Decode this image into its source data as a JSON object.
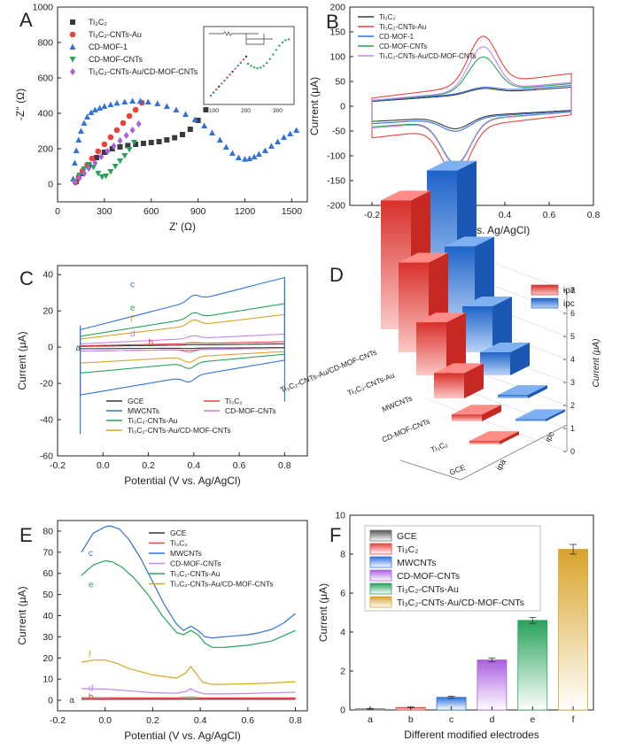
{
  "figure": {
    "panel_letters": [
      "A",
      "B",
      "C",
      "D",
      "E",
      "F"
    ]
  },
  "chart_data": [
    {
      "panel": "A",
      "type": "scatter",
      "title": "",
      "xlabel": "Z' (Ω)",
      "ylabel": "-Z'' (Ω)",
      "xlim": [
        0,
        1600
      ],
      "ylim": [
        -100,
        1000
      ],
      "xticks": [
        0,
        300,
        600,
        900,
        1200,
        1500
      ],
      "yticks": [
        0,
        200,
        400,
        600,
        800,
        1000
      ],
      "legend_position": "top-left",
      "series": [
        {
          "name": "Ti₃C₂",
          "color": "#3a3a3a",
          "marker": "square",
          "x": [
            120,
            160,
            200,
            250,
            300,
            350,
            400,
            450,
            500,
            550,
            600,
            650,
            700,
            750,
            800,
            850,
            900,
            950,
            1000
          ],
          "y": [
            15,
            60,
            110,
            150,
            180,
            200,
            210,
            218,
            225,
            230,
            235,
            240,
            250,
            262,
            280,
            310,
            360,
            420,
            465
          ]
        },
        {
          "name": "Ti₃C₂-CNTs-Au",
          "color": "#e8433c",
          "marker": "circle",
          "x": [
            115,
            135,
            160,
            190,
            220,
            260,
            300,
            340,
            380,
            420,
            460,
            500,
            540
          ],
          "y": [
            10,
            40,
            75,
            110,
            145,
            185,
            225,
            265,
            305,
            345,
            385,
            420,
            460
          ]
        },
        {
          "name": "CD-MOF-1",
          "color": "#2f72dc",
          "marker": "triangle",
          "x": [
            100,
            110,
            120,
            135,
            150,
            170,
            190,
            215,
            240,
            270,
            300,
            340,
            380,
            430,
            480,
            530,
            580,
            640,
            700,
            760,
            820,
            880,
            940,
            990,
            1040,
            1080,
            1120,
            1160,
            1200,
            1230,
            1260,
            1290,
            1330,
            1370,
            1410,
            1450,
            1490,
            1530
          ],
          "y": [
            30,
            120,
            190,
            250,
            300,
            345,
            380,
            405,
            420,
            430,
            440,
            450,
            458,
            465,
            470,
            470,
            465,
            455,
            440,
            420,
            395,
            365,
            330,
            290,
            250,
            210,
            175,
            150,
            142,
            145,
            155,
            170,
            190,
            215,
            240,
            265,
            285,
            305
          ]
        },
        {
          "name": "CD-MOF-CNTs",
          "color": "#27a35b",
          "marker": "triangle-down",
          "x": [
            110,
            140,
            170,
            200,
            230,
            260,
            285,
            310,
            340,
            370,
            400,
            430,
            460,
            490
          ],
          "y": [
            15,
            50,
            85,
            110,
            95,
            60,
            40,
            45,
            70,
            100,
            130,
            160,
            195,
            235
          ]
        },
        {
          "name": "Ti₃C₂-CNTs-Au/CD-MOF-CNTs",
          "color": "#a95fde",
          "marker": "diamond",
          "x": [
            110,
            140,
            170,
            200,
            240,
            280,
            320,
            360,
            400,
            440,
            480,
            520
          ],
          "y": [
            10,
            35,
            60,
            90,
            120,
            155,
            185,
            215,
            245,
            275,
            305,
            340
          ]
        }
      ]
    },
    {
      "panel": "B",
      "type": "line",
      "title": "",
      "xlabel": "Potential (V vs. Ag/AgCl)",
      "ylabel": "Current (μA)",
      "xlim": [
        -0.3,
        0.8
      ],
      "ylim": [
        -200,
        200
      ],
      "xticks": [
        -0.2,
        0.0,
        0.2,
        0.4,
        0.6,
        0.8
      ],
      "yticks": [
        -200,
        -150,
        -100,
        -50,
        0,
        50,
        100,
        150,
        200
      ],
      "legend_position": "top-left",
      "series": [
        {
          "name": "Ti₃C₂",
          "color": "#3a3a3a",
          "ipa": 42,
          "ipc": -52,
          "epa": 0.3,
          "epc": 0.18,
          "cap_hi": 32,
          "cap_lo": -28
        },
        {
          "name": "Ti₃C₂-CNTs-Au",
          "color": "#e8433c",
          "ipa": 152,
          "ipc": -153,
          "epa": 0.3,
          "epc": 0.18,
          "cap_hi": 55,
          "cap_lo": -58
        },
        {
          "name": "CD-MOF-1",
          "color": "#2f72dc",
          "ipa": 45,
          "ipc": -58,
          "epa": 0.3,
          "epc": 0.18,
          "cap_hi": 35,
          "cap_lo": -32
        },
        {
          "name": "CD-MOF-CNTs",
          "color": "#27a35b",
          "ipa": 107,
          "ipc": -125,
          "epa": 0.3,
          "epc": 0.18,
          "cap_hi": 38,
          "cap_lo": -38
        },
        {
          "name": "Ti₃C₂-CNTs-Au/CD-MOF-CNTs",
          "color": "#c884e8",
          "ipa": 128,
          "ipc": -128,
          "epa": 0.3,
          "epc": 0.18,
          "cap_hi": 40,
          "cap_lo": -40
        }
      ]
    },
    {
      "panel": "C",
      "type": "line",
      "title": "",
      "xlabel": "Potential (V vs. Ag/AgCl)",
      "ylabel": "Current (μA)",
      "xlim": [
        -0.2,
        0.9
      ],
      "ylim": [
        -60,
        45
      ],
      "xticks": [
        -0.2,
        0.0,
        0.2,
        0.4,
        0.6,
        0.8
      ],
      "yticks": [
        -60,
        -40,
        -20,
        0,
        20,
        40
      ],
      "legend_position": "bottom",
      "curve_letters": [
        "a",
        "b",
        "c",
        "d",
        "e",
        "f"
      ],
      "series": [
        {
          "letter": "a",
          "name": "GCE",
          "color": "#3a3a3a",
          "top": 1.5,
          "bot": -0.8,
          "peak": 0.2
        },
        {
          "letter": "b",
          "name": "Ti₃C₂",
          "color": "#e8433c",
          "top": 2.5,
          "bot": -2.0,
          "peak": 0.5
        },
        {
          "letter": "c",
          "name": "MWCNTs",
          "color": "#2f72dc",
          "top": 32,
          "bot": -24,
          "peak": 3
        },
        {
          "letter": "d",
          "name": "CD-MOF-CNTs",
          "color": "#c884e8",
          "top": 6,
          "bot": -2,
          "peak": 1.5
        },
        {
          "letter": "e",
          "name": "Ti₃C₂-CNTs-Au",
          "color": "#27a35b",
          "top": 20,
          "bot": -13,
          "peak": 3
        },
        {
          "letter": "f",
          "name": "Ti₃C₂-CNTs-Au/CD-MOF-CNTs",
          "color": "#d8a32a",
          "top": 15,
          "bot": -8,
          "peak": 3
        }
      ]
    },
    {
      "panel": "D",
      "type": "bar",
      "title": "",
      "zlabel": "Current (μA)",
      "zlim": [
        0,
        7
      ],
      "zticks": [
        0,
        1,
        2,
        3,
        4,
        5,
        6,
        7
      ],
      "categories": [
        "GCE",
        "Ti₃C₂",
        "CD-MOF-CNTs",
        "MWCNTs",
        "Ti₃C₂-CNTs-Au",
        "Ti₃C₂-CNTs-Au/CD-MOF-CNTs"
      ],
      "series_axis_labels": [
        "ipa",
        "ipc"
      ],
      "legend_position": "top-right",
      "series": [
        {
          "name": "ipa",
          "color": "#e8433c",
          "values": [
            0.15,
            0.3,
            1.1,
            2.3,
            3.9,
            5.6
          ]
        },
        {
          "name": "ipc",
          "color": "#2f72dc",
          "values": [
            0.1,
            0.15,
            1.0,
            2.0,
            3.6,
            5.9
          ]
        }
      ]
    },
    {
      "panel": "E",
      "type": "line",
      "title": "",
      "xlabel": "Potential (V vs. Ag/AgCl)",
      "ylabel": "Current (μA)",
      "xlim": [
        -0.2,
        0.85
      ],
      "ylim": [
        -5,
        85
      ],
      "xticks": [
        -0.2,
        0.0,
        0.2,
        0.4,
        0.6,
        0.8
      ],
      "yticks": [
        0,
        10,
        20,
        30,
        40,
        50,
        60,
        70,
        80
      ],
      "legend_position": "top-right",
      "curve_letters": [
        "a",
        "b",
        "c",
        "d",
        "e",
        "f"
      ],
      "series": [
        {
          "letter": "a",
          "name": "GCE",
          "color": "#3a3a3a",
          "x": [
            -0.1,
            0.0,
            0.1,
            0.2,
            0.3,
            0.36,
            0.4,
            0.5,
            0.6,
            0.7,
            0.8
          ],
          "y": [
            0.5,
            0.5,
            0.5,
            0.5,
            0.5,
            0.6,
            0.5,
            0.5,
            0.5,
            0.5,
            0.5
          ]
        },
        {
          "letter": "b",
          "name": "Ti₃C₂",
          "color": "#e8433c",
          "x": [
            -0.1,
            0.0,
            0.1,
            0.2,
            0.3,
            0.36,
            0.4,
            0.5,
            0.6,
            0.7,
            0.8
          ],
          "y": [
            1.2,
            1.2,
            1.1,
            1.1,
            1.1,
            1.5,
            1.1,
            1.1,
            1.1,
            1.1,
            1.1
          ]
        },
        {
          "letter": "c",
          "name": "MWCNTs",
          "color": "#2f72dc",
          "x": [
            -0.1,
            -0.05,
            0.0,
            0.02,
            0.06,
            0.1,
            0.15,
            0.2,
            0.25,
            0.3,
            0.33,
            0.36,
            0.39,
            0.42,
            0.45,
            0.5,
            0.55,
            0.6,
            0.65,
            0.7,
            0.75,
            0.8
          ],
          "y": [
            70,
            79,
            82,
            82.5,
            81,
            76,
            67,
            56,
            45,
            36,
            33,
            35,
            33,
            30,
            29.5,
            30,
            30.5,
            31,
            32,
            33.5,
            36.5,
            41
          ]
        },
        {
          "letter": "d",
          "name": "CD-MOF-CNTs",
          "color": "#c884e8",
          "x": [
            -0.1,
            0.0,
            0.1,
            0.2,
            0.3,
            0.34,
            0.36,
            0.38,
            0.42,
            0.5,
            0.6,
            0.7,
            0.8
          ],
          "y": [
            5.5,
            5.3,
            4.5,
            3.6,
            3.3,
            4.2,
            5.5,
            4.2,
            3.0,
            3.0,
            3.2,
            3.5,
            3.8
          ]
        },
        {
          "letter": "e",
          "name": "Ti₃C₂-CNTs-Au",
          "color": "#27a35b",
          "x": [
            -0.1,
            -0.05,
            0.0,
            0.03,
            0.07,
            0.12,
            0.18,
            0.24,
            0.3,
            0.33,
            0.36,
            0.39,
            0.42,
            0.45,
            0.5,
            0.6,
            0.7,
            0.8
          ],
          "y": [
            59,
            64,
            66,
            65.5,
            63,
            58,
            50,
            40,
            32,
            31,
            33,
            31,
            27,
            25,
            25,
            26,
            28,
            33
          ]
        },
        {
          "letter": "f",
          "name": "Ti₃C₂-CNTs-Au/CD-MOF-CNTs",
          "color": "#d8a32a",
          "x": [
            -0.1,
            -0.05,
            0.0,
            0.05,
            0.1,
            0.2,
            0.3,
            0.34,
            0.36,
            0.38,
            0.41,
            0.45,
            0.5,
            0.6,
            0.7,
            0.8
          ],
          "y": [
            18,
            19,
            19,
            17.5,
            15,
            12,
            10.5,
            13,
            16,
            13,
            8.5,
            7.5,
            7.5,
            7.8,
            8.2,
            8.8
          ]
        }
      ]
    },
    {
      "panel": "F",
      "type": "bar",
      "title": "",
      "xlabel": "Different modified electrodes",
      "ylabel": "Current (μA)",
      "ylim": [
        0,
        10
      ],
      "yticks": [
        0,
        2,
        4,
        6,
        8,
        10
      ],
      "categories": [
        "a",
        "b",
        "c",
        "d",
        "e",
        "f"
      ],
      "legend_position": "top-left",
      "series": [
        {
          "name": "GCE",
          "color": "#707070",
          "value": 0.06,
          "error": 0.02
        },
        {
          "name": "Ti₃C₂",
          "color": "#e8433c",
          "value": 0.13,
          "error": 0.02
        },
        {
          "name": "MWCNTs",
          "color": "#2f72dc",
          "value": 0.65,
          "error": 0.05
        },
        {
          "name": "CD-MOF-CNTs",
          "color": "#a95fde",
          "value": 2.57,
          "error": 0.1
        },
        {
          "name": "Ti₃C₂-CNTs-Au",
          "color": "#27a35b",
          "value": 4.6,
          "error": 0.15
        },
        {
          "name": "Ti₃C₂-CNTs-Au/CD-MOF-CNTs",
          "color": "#d8a32a",
          "value": 8.25,
          "error": 0.25
        }
      ]
    }
  ]
}
